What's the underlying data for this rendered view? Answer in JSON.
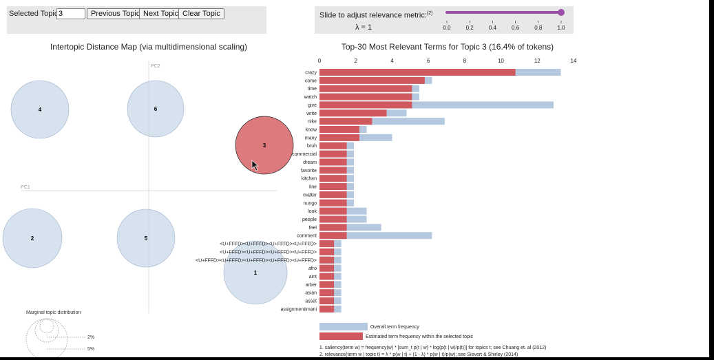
{
  "controls": {
    "topic_label": "Selected Topic:",
    "topic_value": "3",
    "prev_label": "Previous Topic",
    "next_label": "Next Topic",
    "clear_label": "Clear Topic",
    "slider_label": "Slide to adjust relevance metric:",
    "slider_footnote": "(2)",
    "lambda_text": "λ = 1",
    "lambda_value": 1,
    "slider_ticks": [
      "0.0",
      "0.2",
      "0.4",
      "0.6",
      "0.8",
      "1.0"
    ]
  },
  "map": {
    "title": "Intertopic Distance Map (via multidimensional scaling)",
    "pc1": "PC1",
    "pc2": "PC2",
    "topics": [
      {
        "id": "4",
        "label": "4",
        "selected": false
      },
      {
        "id": "6",
        "label": "6",
        "selected": false
      },
      {
        "id": "3",
        "label": "3",
        "selected": true
      },
      {
        "id": "2",
        "label": "2",
        "selected": false
      },
      {
        "id": "5",
        "label": "5",
        "selected": false
      },
      {
        "id": "1",
        "label": "1",
        "selected": false
      }
    ],
    "marginal_title": "Marginal topic distribution",
    "marginal_labels": [
      "2%",
      "5%"
    ]
  },
  "chart_data": {
    "type": "bar",
    "title": "Top-30 Most Relevant Terms for Topic 3 (16.4% of tokens)",
    "xlim": [
      0,
      14
    ],
    "xticks": [
      "0",
      "2",
      "4",
      "6",
      "8",
      "10",
      "12",
      "14"
    ],
    "categories": [
      "crazy",
      "come",
      "time",
      "watch",
      "give",
      "write",
      "nike",
      "know",
      "many",
      "bruh",
      "commercial",
      "dream",
      "favorite",
      "kitchen",
      "line",
      "matter",
      "nungo",
      "look",
      "people",
      "feel",
      "comment",
      "<U+FFFD><U+FFFD><U+FFFD><U+FFFD>",
      "<U+FFFD><U+FFFD><U+FFFD><U+FFFD>",
      "<U+FFFD><U+FFFD><U+FFFD><U+FFFD><U+FFFD>",
      "afro",
      "aint",
      "arber",
      "asian",
      "asset",
      "assignmentimani"
    ],
    "series": [
      {
        "name": "Overall term frequency",
        "color": "#b4c9e0",
        "values": [
          13.3,
          6.2,
          5.5,
          5.5,
          12.9,
          4.8,
          6.9,
          2.6,
          4.0,
          1.9,
          1.9,
          1.9,
          1.9,
          1.9,
          1.9,
          1.9,
          1.9,
          2.6,
          2.6,
          3.4,
          6.2,
          1.2,
          1.2,
          1.2,
          1.2,
          1.2,
          1.2,
          1.2,
          1.2,
          1.2
        ]
      },
      {
        "name": "Estimated term frequency within the selected topic",
        "color": "#d0595f",
        "values": [
          10.8,
          5.8,
          5.1,
          5.1,
          5.1,
          3.7,
          2.9,
          2.2,
          2.2,
          1.5,
          1.5,
          1.5,
          1.5,
          1.5,
          1.5,
          1.5,
          1.5,
          1.5,
          1.5,
          1.5,
          1.5,
          0.8,
          0.8,
          0.8,
          0.8,
          0.8,
          0.8,
          0.8,
          0.8,
          0.8
        ]
      }
    ],
    "legend": [
      "Overall term frequency",
      "Estimated term frequency within the selected topic"
    ],
    "notes": [
      "1. saliency(term w) = frequency(w) * [sum_t p(t | w) * log(p(t | w)/p(t))] for topics t; see Chuang et. al (2012)",
      "2. relevance(term w | topic t) = λ * p(w | t) + (1 - λ) * p(w | t)/p(w); see Sievert & Shirley (2014)"
    ]
  }
}
